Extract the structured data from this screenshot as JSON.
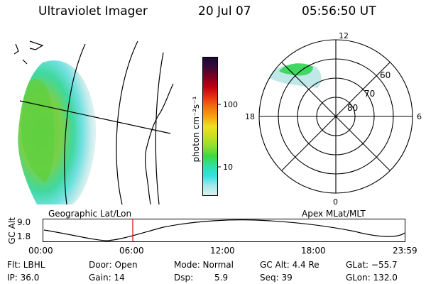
{
  "header": {
    "instrument": "Ultraviolet Imager",
    "date": "20 Jul 07",
    "time": "05:56:50 UT"
  },
  "colorbar": {
    "unit_label": "photon cm⁻²s⁻¹",
    "ticks": [
      "100",
      "10"
    ],
    "colors": [
      "#1a0a33",
      "#3a0a3a",
      "#800020",
      "#c00010",
      "#e83010",
      "#f07010",
      "#f8a010",
      "#f0e020",
      "#c8e020",
      "#90e030",
      "#40d840",
      "#30e0a0",
      "#30e0e0",
      "#a0e8e8",
      "#e0f0f0"
    ]
  },
  "polar_plot": {
    "mlt_labels": {
      "top": "12",
      "left": "18",
      "right": "6",
      "bottom": "0"
    },
    "lat_labels": [
      "60",
      "70",
      "80"
    ]
  },
  "map_labels": {
    "left": "Geographic Lat/Lon",
    "right": "Apex MLat/MLT"
  },
  "timeline": {
    "axis_title": "GC Alt",
    "y_ticks": [
      "9.0",
      "1.8"
    ],
    "x_ticks": [
      "00:00",
      "06:00",
      "12:00",
      "18:00",
      "23:59"
    ],
    "marker_color": "#e00000"
  },
  "info": {
    "flt": "Flt: LBHL",
    "ip": "IP: 36.0",
    "door": "Door: Open",
    "gain": "Gain: 14",
    "mode": "Mode: Normal",
    "dsp_label": "Dsp:",
    "dsp_value": "5.9",
    "gcalt": "GC Alt: 4.4 Re",
    "seq": "Seq: 39",
    "glat": "GLat: −55.7",
    "glon": "GLon: 132.0"
  }
}
